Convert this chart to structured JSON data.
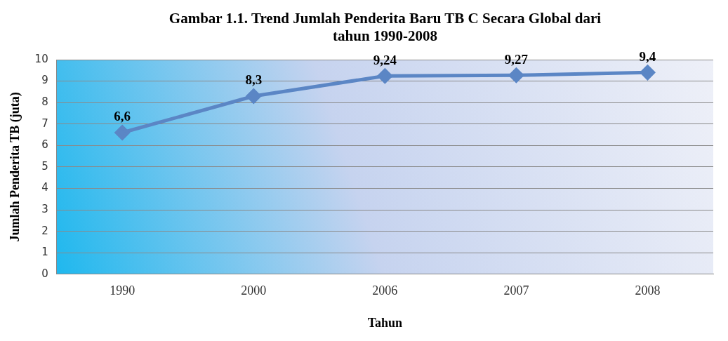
{
  "chart_data": {
    "type": "line",
    "title": "Gambar 1.1. Trend Jumlah Penderita Baru TB C Secara Global dari tahun 1990-2008",
    "xlabel": "Tahun",
    "ylabel": "Jumlah Penderita TB (juta)",
    "categories": [
      "1990",
      "2000",
      "2006",
      "2007",
      "2008"
    ],
    "series": [
      {
        "color": "#5b86c5",
        "values": [
          6.6,
          8.3,
          9.24,
          9.27,
          9.4
        ],
        "value_labels": [
          "6,6",
          "8,3",
          "9,24",
          "9,27",
          "9,4"
        ]
      }
    ],
    "ylim": [
      0,
      10
    ],
    "yticks": [
      0,
      1,
      2,
      3,
      4,
      5,
      6,
      7,
      8,
      9,
      10
    ],
    "grid": "y",
    "legend": false,
    "marker": "diamond",
    "line_style": "solid"
  }
}
